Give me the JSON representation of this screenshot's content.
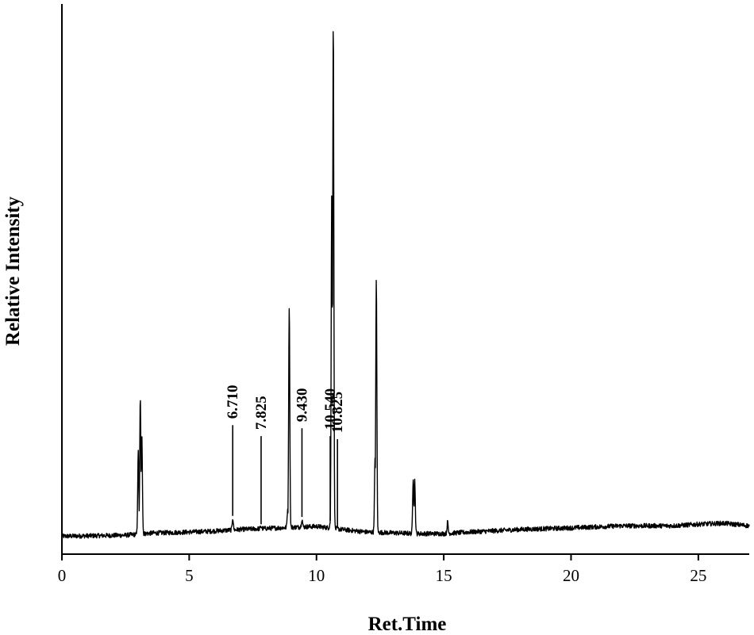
{
  "chart_data": {
    "type": "line",
    "title": "",
    "xlabel": "Ret.Time",
    "ylabel": "Relative Intensity",
    "xlim": [
      0,
      27
    ],
    "ylim": [
      0,
      100
    ],
    "grid": false,
    "legend": "none",
    "y_ticks_shown": false,
    "x_ticks": [
      0,
      5,
      10,
      15,
      20,
      25
    ],
    "x_tick_labels": [
      "0",
      "5",
      "10",
      "15",
      "20",
      "25"
    ],
    "line_color": "#000000",
    "baseline": [
      [
        0,
        1.3
      ],
      [
        2.5,
        1.5
      ],
      [
        3.5,
        1.9
      ],
      [
        5,
        2.1
      ],
      [
        6,
        2.3
      ],
      [
        7,
        2.6
      ],
      [
        8,
        2.8
      ],
      [
        9,
        3.0
      ],
      [
        10,
        3.2
      ],
      [
        11,
        2.6
      ],
      [
        12,
        2.1
      ],
      [
        14,
        1.8
      ],
      [
        15,
        1.8
      ],
      [
        16,
        2.1
      ],
      [
        18,
        2.6
      ],
      [
        20,
        2.9
      ],
      [
        22,
        3.3
      ],
      [
        24,
        3.3
      ],
      [
        25,
        3.6
      ],
      [
        26,
        3.8
      ],
      [
        27,
        3.3
      ]
    ],
    "peaks": [
      {
        "x": 3.0,
        "y": 17.5
      },
      {
        "x": 3.08,
        "y": 28.0
      },
      {
        "x": 3.14,
        "y": 21.0
      },
      {
        "x": 6.71,
        "y": 4.8
      },
      {
        "x": 7.825,
        "y": 3.2
      },
      {
        "x": 8.87,
        "y": 6.5
      },
      {
        "x": 8.93,
        "y": 45.5
      },
      {
        "x": 9.43,
        "y": 4.6
      },
      {
        "x": 10.54,
        "y": 3.9
      },
      {
        "x": 10.6,
        "y": 67.5
      },
      {
        "x": 10.66,
        "y": 100.0
      },
      {
        "x": 10.825,
        "y": 2.8
      },
      {
        "x": 12.3,
        "y": 16.0
      },
      {
        "x": 12.35,
        "y": 50.5
      },
      {
        "x": 13.8,
        "y": 12.5
      },
      {
        "x": 13.86,
        "y": 12.0
      },
      {
        "x": 15.15,
        "y": 4.0
      }
    ],
    "annotations": [
      {
        "label": "6.710",
        "x": 6.71,
        "y_from": 5.2,
        "y_to": 22.6
      },
      {
        "label": "7.825",
        "x": 7.825,
        "y_from": 3.6,
        "y_to": 20.5
      },
      {
        "label": "9.430",
        "x": 9.43,
        "y_from": 5.0,
        "y_to": 22.0
      },
      {
        "label": "10.540",
        "x": 10.54,
        "y_from": 4.3,
        "y_to": 20.5
      },
      {
        "label": "10.825",
        "x": 10.825,
        "y_from": 3.2,
        "y_to": 19.9
      }
    ]
  }
}
